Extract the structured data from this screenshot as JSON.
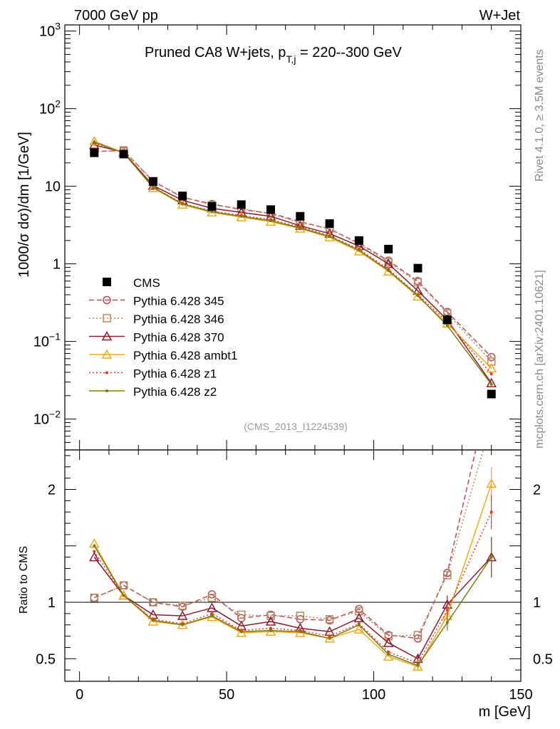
{
  "header": {
    "energy_label": "7000 GeV pp",
    "process_label": "W+Jet",
    "side_top": "Rivet 4.1.0, ≥ 3.5M events",
    "side_bottom": "mcplots.cern.ch [arXiv:2401.10621]",
    "source": "(CMS_2013_I1224539)"
  },
  "chart_data": {
    "type": "line",
    "title": "Pruned CA8 W+jets, p_{T,j} = 220--300 GeV",
    "title_main": "Pruned CA8 W+jets, p",
    "title_sub": "T,j",
    "title_tail": " = 220--300 GeV",
    "ylabel_main": "1000/σ  dσ)/dm [1/GeV]",
    "ylabel_ratio": "Ratio to CMS",
    "xlabel": "m [GeV]",
    "xlim": [
      -5,
      150
    ],
    "ylim_main": [
      0.004,
      1200
    ],
    "ylim_ratio": [
      0.3,
      2.35
    ],
    "yscale_main": "log",
    "x_ticks": [
      0,
      50,
      100,
      150
    ],
    "x_tick_labels": [
      "0",
      "50",
      "100",
      "150"
    ],
    "y_ticks_main": [
      0.01,
      0.1,
      1,
      10,
      100,
      1000
    ],
    "y_tick_labels_main": [
      "10^-2",
      "10^-1",
      "1",
      "10",
      "10^2",
      "10^3"
    ],
    "y_ticks_ratio": [
      0.5,
      1,
      2
    ],
    "y_tick_labels_ratio": [
      "0.5",
      "1",
      "2"
    ],
    "x": [
      5,
      15,
      25,
      35,
      45,
      55,
      65,
      75,
      85,
      95,
      105,
      115,
      125,
      140
    ],
    "data": {
      "name": "CMS",
      "values": [
        27,
        26,
        11.5,
        7.5,
        5.5,
        5.8,
        5.0,
        4.1,
        3.3,
        2.0,
        1.55,
        0.88,
        0.19,
        0.021
      ]
    },
    "series": [
      {
        "name": "Pythia 6.428 345",
        "color": "#b84a5a",
        "line": "dashed",
        "marker": "circle",
        "values": [
          28,
          28.8,
          11.6,
          7.2,
          5.9,
          5.0,
          4.5,
          3.5,
          2.8,
          1.85,
          1.1,
          0.6,
          0.24,
          0.063
        ],
        "ratio": [
          1.04,
          1.15,
          1.0,
          0.96,
          1.07,
          0.86,
          0.89,
          0.85,
          0.84,
          0.94,
          0.71,
          0.68,
          1.26,
          2.95
        ],
        "ratio_err": [
          0,
          0,
          0,
          0,
          0,
          0,
          0,
          0,
          0,
          0,
          0,
          0,
          0,
          0.15
        ]
      },
      {
        "name": "Pythia 6.428 346",
        "color": "#b08a5a",
        "line": "dotted",
        "marker": "square",
        "values": [
          28,
          29,
          11.7,
          7.3,
          5.7,
          5.2,
          4.4,
          3.4,
          2.85,
          1.8,
          1.05,
          0.58,
          0.23,
          0.055
        ],
        "ratio": [
          1.04,
          1.15,
          1.0,
          0.97,
          1.04,
          0.89,
          0.88,
          0.88,
          0.85,
          0.92,
          0.7,
          0.71,
          1.24,
          2.6
        ],
        "ratio_err": [
          0,
          0,
          0,
          0,
          0,
          0,
          0,
          0,
          0,
          0,
          0,
          0,
          0,
          0.12
        ]
      },
      {
        "name": "Pythia 6.428 370",
        "color": "#8c1c2c",
        "line": "solid",
        "marker": "triangle",
        "values": [
          34,
          27.5,
          10.2,
          6.6,
          5.2,
          4.6,
          4.1,
          3.1,
          2.45,
          1.7,
          1.0,
          0.45,
          0.19,
          0.029
        ],
        "ratio": [
          1.4,
          1.06,
          0.89,
          0.88,
          0.95,
          0.79,
          0.83,
          0.77,
          0.74,
          0.86,
          0.64,
          0.5,
          0.98,
          1.4
        ],
        "ratio_err": [
          0,
          0,
          0,
          0,
          0,
          0,
          0,
          0,
          0,
          0,
          0,
          0.03,
          0.08,
          0.18
        ]
      },
      {
        "name": "Pythia 6.428 ambt1",
        "color": "#f0a81a",
        "line": "solid",
        "marker": "triangle",
        "values": [
          38,
          27,
          9.5,
          5.8,
          4.6,
          4.0,
          3.5,
          2.85,
          2.2,
          1.45,
          0.8,
          0.38,
          0.17,
          0.045
        ],
        "ratio": [
          1.52,
          1.06,
          0.83,
          0.8,
          0.87,
          0.73,
          0.74,
          0.73,
          0.68,
          0.76,
          0.52,
          0.43,
          0.88,
          2.05
        ],
        "ratio_err": [
          0,
          0,
          0,
          0,
          0,
          0,
          0,
          0,
          0,
          0,
          0,
          0.03,
          0.07,
          0.15
        ]
      },
      {
        "name": "Pythia 6.428 z1",
        "color": "#e03a2a",
        "line": "dotted",
        "marker": "dot",
        "values": [
          36,
          27.2,
          9.8,
          6.0,
          4.8,
          4.2,
          3.7,
          3.0,
          2.3,
          1.55,
          0.85,
          0.4,
          0.18,
          0.038
        ],
        "ratio": [
          1.45,
          1.06,
          0.85,
          0.81,
          0.9,
          0.75,
          0.77,
          0.75,
          0.7,
          0.81,
          0.56,
          0.46,
          0.93,
          1.8
        ],
        "ratio_err": [
          0,
          0,
          0,
          0,
          0,
          0,
          0,
          0,
          0,
          0,
          0,
          0.03,
          0.07,
          0.15
        ]
      },
      {
        "name": "Pythia 6.428 z2",
        "color": "#7a7a10",
        "line": "solid",
        "marker": "dot",
        "values": [
          37,
          27,
          9.7,
          5.9,
          4.7,
          4.1,
          3.6,
          2.9,
          2.25,
          1.5,
          0.82,
          0.39,
          0.16,
          0.028
        ],
        "ratio": [
          1.5,
          1.06,
          0.84,
          0.8,
          0.88,
          0.74,
          0.75,
          0.74,
          0.68,
          0.8,
          0.54,
          0.44,
          0.82,
          1.4
        ],
        "ratio_err": [
          0,
          0,
          0,
          0,
          0,
          0,
          0,
          0,
          0,
          0,
          0,
          0.03,
          0.07,
          0.18
        ]
      }
    ]
  }
}
